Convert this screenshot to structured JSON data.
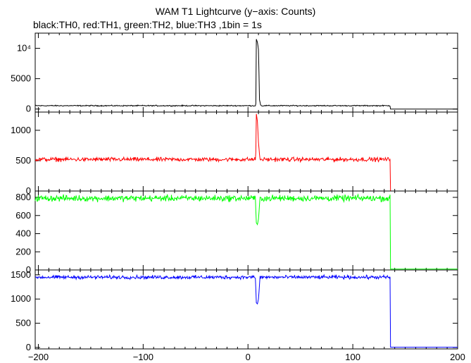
{
  "title": "WAM T1 Lightcurve (y−axis: Counts)",
  "subtitle": "black:TH0, red:TH1, green:TH2, blue:TH3 ,1bin = 1s",
  "chart_data": {
    "type": "line",
    "title": "WAM T1 Lightcurve (y−axis: Counts)",
    "subtitle": "black:TH0, red:TH1, green:TH2, blue:TH3 ,1bin = 1s",
    "xlim": [
      -203,
      200
    ],
    "x_tick_labels": [
      "−200",
      "−100",
      "0",
      "100",
      "200"
    ],
    "x_tick_values": [
      -200,
      -100,
      0,
      100,
      200
    ],
    "grid": false,
    "series": [
      {
        "name": "TH0",
        "color": "#000000",
        "ylim": [
          -500,
          12500
        ],
        "y_tick_values": [
          0,
          5000,
          10000
        ],
        "y_tick_labels": [
          "0",
          "5000",
          "10⁴"
        ],
        "baseline": 550,
        "noise": 70,
        "drop_x": 136,
        "post_value": 0,
        "feature": [
          {
            "x": 7.5,
            "y": 900
          },
          {
            "x": 8,
            "y": 11500
          },
          {
            "x": 9,
            "y": 11000
          },
          {
            "x": 10,
            "y": 9800
          },
          {
            "x": 11,
            "y": 1500
          },
          {
            "x": 12,
            "y": 700
          }
        ]
      },
      {
        "name": "TH1",
        "color": "#ff0000",
        "ylim": [
          0,
          1300
        ],
        "y_tick_values": [
          0,
          500,
          1000
        ],
        "y_tick_labels": [
          "0",
          "500",
          "1000"
        ],
        "baseline": 520,
        "noise": 28,
        "drop_x": 136,
        "post_value": 0,
        "feature": [
          {
            "x": 7.5,
            "y": 650
          },
          {
            "x": 8,
            "y": 1270
          },
          {
            "x": 9,
            "y": 1150
          },
          {
            "x": 10,
            "y": 800
          },
          {
            "x": 11,
            "y": 600
          }
        ]
      },
      {
        "name": "TH2",
        "color": "#00ff00",
        "ylim": [
          0,
          870
        ],
        "y_tick_values": [
          0,
          200,
          400,
          600,
          800
        ],
        "y_tick_labels": [
          "0",
          "200",
          "400",
          "600",
          "800"
        ],
        "baseline": 790,
        "noise": 28,
        "drop_x": 136,
        "post_value": 10,
        "feature": [
          {
            "x": 7.5,
            "y": 650
          },
          {
            "x": 8,
            "y": 520
          },
          {
            "x": 9,
            "y": 500
          },
          {
            "x": 10,
            "y": 560
          },
          {
            "x": 11,
            "y": 720
          }
        ]
      },
      {
        "name": "TH3",
        "color": "#0000ff",
        "ylim": [
          -30,
          1600
        ],
        "y_tick_values": [
          0,
          500,
          1000,
          1500
        ],
        "y_tick_labels": [
          "0",
          "500",
          "1000",
          "1500"
        ],
        "baseline": 1450,
        "noise": 30,
        "drop_x": 136,
        "post_value": 5,
        "feature": [
          {
            "x": 7.5,
            "y": 1200
          },
          {
            "x": 8,
            "y": 920
          },
          {
            "x": 9,
            "y": 900
          },
          {
            "x": 10,
            "y": 1000
          },
          {
            "x": 11,
            "y": 1300
          }
        ]
      }
    ]
  }
}
